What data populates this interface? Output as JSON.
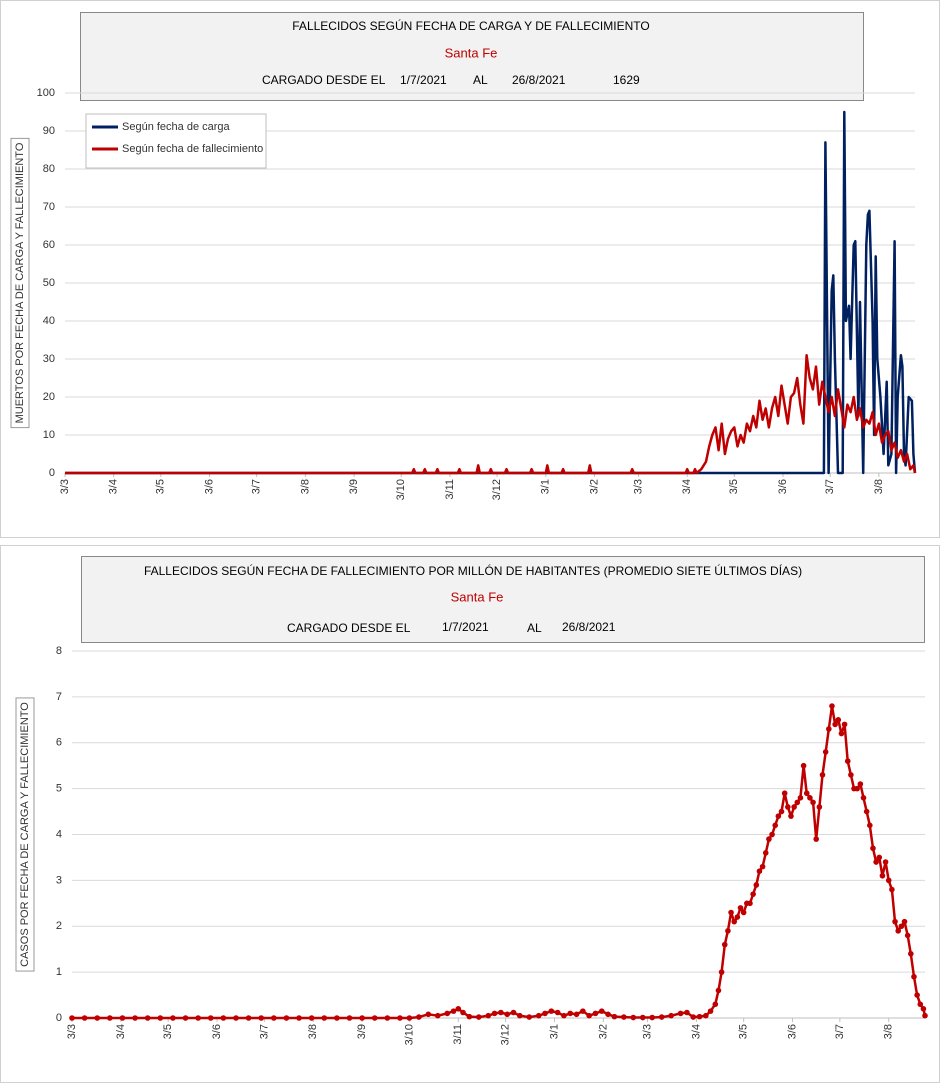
{
  "chart_data": [
    {
      "type": "line",
      "title": "FALLECIDOS SEGÚN FECHA DE CARGA Y DE FALLECIMIENTO",
      "subtitle": "Santa Fe",
      "loaded_label": "CARGADO DESDE EL",
      "from": "1/7/2021",
      "to_label": "AL",
      "to": "26/8/2021",
      "total": 1629,
      "ylabel": "MUERTOS POR FECHA DE CARGA Y FALLECIMIENTO",
      "xlim": [
        0,
        541
      ],
      "xticks": [
        {
          "value": 0,
          "label": "3/3"
        },
        {
          "value": 31,
          "label": "3/4"
        },
        {
          "value": 61,
          "label": "3/5"
        },
        {
          "value": 92,
          "label": "3/6"
        },
        {
          "value": 122,
          "label": "3/7"
        },
        {
          "value": 153,
          "label": "3/8"
        },
        {
          "value": 184,
          "label": "3/9"
        },
        {
          "value": 214,
          "label": "3/10"
        },
        {
          "value": 245,
          "label": "3/11"
        },
        {
          "value": 275,
          "label": "3/12"
        },
        {
          "value": 306,
          "label": "3/1"
        },
        {
          "value": 337,
          "label": "3/2"
        },
        {
          "value": 365,
          "label": "3/3"
        },
        {
          "value": 396,
          "label": "3/4"
        },
        {
          "value": 426,
          "label": "3/5"
        },
        {
          "value": 457,
          "label": "3/6"
        },
        {
          "value": 487,
          "label": "3/7"
        },
        {
          "value": 518,
          "label": "3/8"
        }
      ],
      "ylim": [
        0,
        100
      ],
      "yticks": [
        0,
        10,
        20,
        30,
        40,
        50,
        60,
        70,
        80,
        90,
        100
      ],
      "grid": true,
      "legend": "top-left",
      "markers": false,
      "series": [
        {
          "name": "Según fecha de carga",
          "color": "#002060",
          "x": [
            0,
            483,
            484,
            486,
            488,
            489,
            490,
            492,
            493,
            495,
            496,
            497,
            499,
            500,
            502,
            503,
            505,
            506,
            508,
            510,
            511,
            512,
            514,
            515,
            516,
            517,
            519,
            521,
            523,
            524,
            526,
            528,
            529,
            530,
            532,
            533,
            534,
            535,
            537,
            539,
            540,
            541
          ],
          "values": [
            0,
            0,
            87,
            0,
            48,
            52,
            30,
            0,
            0,
            0,
            95,
            40,
            44,
            30,
            60,
            61,
            15,
            45,
            0,
            60,
            68,
            69,
            40,
            10,
            57,
            30,
            20,
            5,
            24,
            2,
            5,
            61,
            0,
            20,
            31,
            28,
            5,
            2,
            20,
            19,
            5,
            0
          ]
        },
        {
          "name": "Según fecha de fallecimiento",
          "color": "#c00000",
          "x": [
            0,
            221,
            222,
            223,
            228,
            229,
            230,
            236,
            237,
            238,
            250,
            251,
            252,
            262,
            263,
            264,
            270,
            271,
            272,
            280,
            281,
            282,
            296,
            297,
            298,
            306,
            307,
            308,
            316,
            317,
            318,
            333,
            334,
            335,
            360,
            361,
            362,
            395,
            396,
            397,
            400,
            401,
            402,
            405,
            408,
            410,
            412,
            414,
            416,
            418,
            420,
            422,
            424,
            426,
            428,
            430,
            432,
            434,
            436,
            438,
            440,
            442,
            444,
            446,
            448,
            450,
            452,
            454,
            456,
            458,
            460,
            462,
            464,
            466,
            468,
            470,
            472,
            474,
            476,
            478,
            480,
            482,
            484,
            486,
            488,
            490,
            492,
            494,
            496,
            498,
            500,
            502,
            504,
            506,
            508,
            510,
            512,
            514,
            516,
            518,
            520,
            522,
            524,
            526,
            528,
            530,
            532,
            534,
            536,
            538,
            540,
            541
          ],
          "values": [
            0,
            0,
            1,
            0,
            0,
            1,
            0,
            0,
            1,
            0,
            0,
            1,
            0,
            0,
            2,
            0,
            0,
            1,
            0,
            0,
            1,
            0,
            0,
            1,
            0,
            0,
            2,
            0,
            0,
            1,
            0,
            0,
            2,
            0,
            0,
            1,
            0,
            0,
            1,
            0,
            0,
            1,
            0,
            1,
            3,
            7,
            10,
            12,
            6,
            13,
            5,
            9,
            11,
            12,
            7,
            10,
            8,
            13,
            11,
            15,
            12,
            19,
            14,
            17,
            12,
            17,
            20,
            15,
            23,
            18,
            13,
            20,
            21,
            25,
            18,
            13,
            31,
            25,
            22,
            28,
            18,
            24,
            20,
            16,
            20,
            15,
            22,
            17,
            12,
            18,
            16,
            20,
            14,
            17,
            12,
            14,
            13,
            16,
            10,
            13,
            8,
            10,
            11,
            6,
            8,
            4,
            6,
            3,
            5,
            1,
            2,
            0
          ]
        }
      ]
    },
    {
      "type": "line",
      "title": "FALLECIDOS SEGÚN FECHA DE FALLECIMIENTO POR MILLÓN DE HABITANTES (PROMEDIO SIETE ÚLTIMOS DÍAS)",
      "subtitle": "Santa Fe",
      "loaded_label": "CARGADO DESDE EL",
      "from": "1/7/2021",
      "to_label": "AL",
      "to": "26/8/2021",
      "ylabel": "CASOS POR FECHA DE CARGA Y FALLECIMIENTO",
      "xlim": [
        0,
        541
      ],
      "xticks": [
        {
          "value": 0,
          "label": "3/3"
        },
        {
          "value": 31,
          "label": "3/4"
        },
        {
          "value": 61,
          "label": "3/5"
        },
        {
          "value": 92,
          "label": "3/6"
        },
        {
          "value": 122,
          "label": "3/7"
        },
        {
          "value": 153,
          "label": "3/8"
        },
        {
          "value": 184,
          "label": "3/9"
        },
        {
          "value": 214,
          "label": "3/10"
        },
        {
          "value": 245,
          "label": "3/11"
        },
        {
          "value": 275,
          "label": "3/12"
        },
        {
          "value": 306,
          "label": "3/1"
        },
        {
          "value": 337,
          "label": "3/2"
        },
        {
          "value": 365,
          "label": "3/3"
        },
        {
          "value": 396,
          "label": "3/4"
        },
        {
          "value": 426,
          "label": "3/5"
        },
        {
          "value": 457,
          "label": "3/6"
        },
        {
          "value": 487,
          "label": "3/7"
        },
        {
          "value": 518,
          "label": "3/8"
        }
      ],
      "ylim": [
        0,
        8
      ],
      "yticks": [
        0,
        1,
        2,
        3,
        4,
        5,
        6,
        7,
        8
      ],
      "grid": true,
      "markers": true,
      "series": [
        {
          "color": "#c00000",
          "x": [
            0,
            8,
            16,
            24,
            32,
            40,
            48,
            56,
            64,
            72,
            80,
            88,
            96,
            104,
            112,
            120,
            128,
            136,
            144,
            152,
            160,
            168,
            176,
            184,
            192,
            200,
            208,
            214,
            220,
            226,
            232,
            238,
            242,
            245,
            248,
            252,
            258,
            264,
            268,
            272,
            276,
            280,
            284,
            290,
            296,
            300,
            304,
            308,
            312,
            316,
            320,
            324,
            328,
            332,
            336,
            340,
            344,
            350,
            356,
            362,
            368,
            374,
            380,
            386,
            390,
            394,
            398,
            402,
            405,
            408,
            410,
            412,
            414,
            416,
            418,
            420,
            422,
            424,
            426,
            428,
            430,
            432,
            434,
            436,
            438,
            440,
            442,
            444,
            446,
            448,
            450,
            452,
            454,
            456,
            458,
            460,
            462,
            464,
            466,
            468,
            470,
            472,
            474,
            476,
            478,
            480,
            482,
            484,
            486,
            488,
            490,
            492,
            494,
            496,
            498,
            500,
            502,
            504,
            506,
            508,
            510,
            512,
            514,
            516,
            518,
            520,
            522,
            524,
            526,
            528,
            530,
            532,
            534,
            536,
            538,
            540,
            541
          ],
          "values": [
            0,
            0,
            0,
            0,
            0,
            0,
            0,
            0,
            0,
            0,
            0,
            0,
            0,
            0,
            0,
            0,
            0,
            0,
            0,
            0,
            0,
            0,
            0,
            0,
            0,
            0,
            0,
            0,
            0.02,
            0.08,
            0.05,
            0.1,
            0.15,
            0.2,
            0.12,
            0.03,
            0.02,
            0.05,
            0.1,
            0.12,
            0.08,
            0.12,
            0.05,
            0.02,
            0.05,
            0.1,
            0.15,
            0.12,
            0.05,
            0.1,
            0.08,
            0.15,
            0.05,
            0.1,
            0.15,
            0.08,
            0.03,
            0.02,
            0.01,
            0.01,
            0.01,
            0.02,
            0.05,
            0.1,
            0.12,
            0.02,
            0.03,
            0.05,
            0.15,
            0.3,
            0.6,
            1.0,
            1.6,
            1.9,
            2.3,
            2.1,
            2.2,
            2.4,
            2.3,
            2.5,
            2.5,
            2.7,
            2.9,
            3.2,
            3.3,
            3.6,
            3.9,
            4.0,
            4.2,
            4.4,
            4.5,
            4.9,
            4.6,
            4.4,
            4.6,
            4.7,
            4.8,
            5.5,
            4.9,
            4.8,
            4.7,
            3.9,
            4.6,
            5.3,
            5.8,
            6.3,
            6.8,
            6.4,
            6.5,
            6.2,
            6.4,
            5.6,
            5.3,
            5.0,
            5.0,
            5.1,
            4.8,
            4.5,
            4.2,
            3.7,
            3.4,
            3.5,
            3.1,
            3.4,
            3.0,
            2.8,
            2.1,
            1.9,
            2.0,
            2.1,
            1.8,
            1.4,
            0.9,
            0.5,
            0.3,
            0.2,
            0.05
          ]
        }
      ]
    }
  ]
}
